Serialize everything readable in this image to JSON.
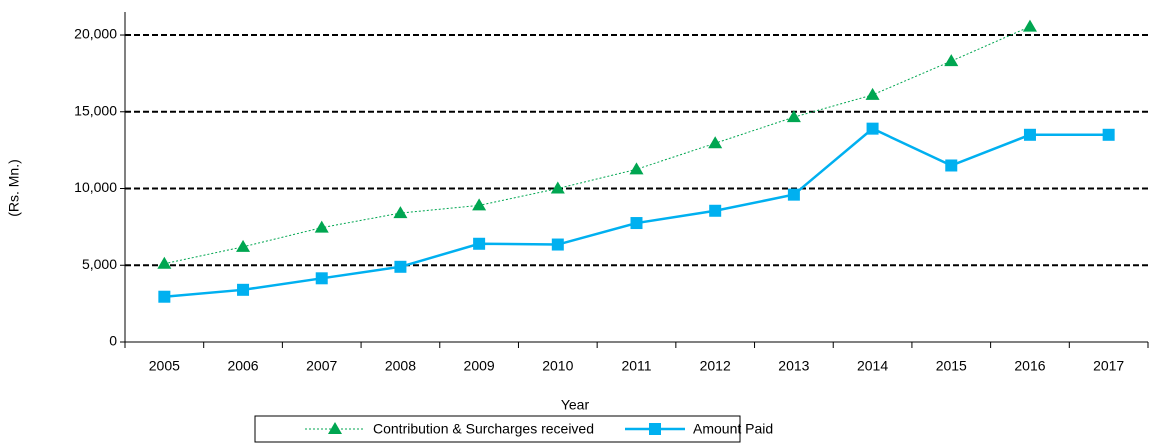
{
  "chart_data": {
    "type": "line",
    "y_label": "(Rs. Mn.)",
    "x_label": "Year",
    "categories": [
      "2005",
      "2006",
      "2007",
      "2008",
      "2009",
      "2010",
      "2011",
      "2012",
      "2013",
      "2014",
      "2015",
      "2016",
      "2017"
    ],
    "series": [
      {
        "name": "Contribution & Surcharges received",
        "color": "#00a651",
        "marker": "triangle",
        "values": [
          5100,
          6200,
          7450,
          8400,
          8900,
          10000,
          11250,
          12950,
          14650,
          16100,
          18300,
          20550,
          null
        ]
      },
      {
        "name": "Amount Paid",
        "color": "#00b0f0",
        "marker": "square",
        "values": [
          2950,
          3400,
          4150,
          4900,
          6400,
          6350,
          7750,
          8550,
          9600,
          13900,
          11500,
          13500,
          13500
        ]
      }
    ],
    "ylim": [
      0,
      21500
    ],
    "yticks": [
      0,
      {
        "value": 5000,
        "label": "5,000"
      },
      {
        "value": 10000,
        "label": "10,000"
      },
      {
        "value": 15000,
        "label": "15,000"
      },
      {
        "value": 20000,
        "label": "20,000"
      }
    ],
    "grid": true,
    "legend": "bottom"
  }
}
